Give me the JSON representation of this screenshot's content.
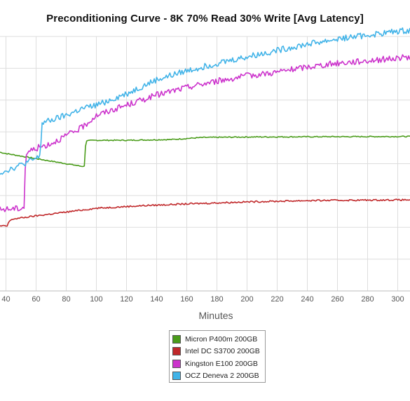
{
  "chart_data": {
    "type": "line",
    "title": "Preconditioning Curve - 8K 70% Read 30% Write [Avg Latency]",
    "xlabel": "Minutes",
    "ylabel": "",
    "x_ticks": [
      "40",
      "60",
      "80",
      "100",
      "120",
      "140",
      "160",
      "180",
      "200",
      "220",
      "240",
      "260",
      "280",
      "300"
    ],
    "xlim": [
      36,
      310
    ],
    "ylim": [
      0,
      10
    ],
    "grid": true,
    "legend_position": "bottom-center",
    "series": [
      {
        "name": "Micron P400m 200GB",
        "color": "#4a9c1a",
        "x": [
          36,
          40,
          50,
          60,
          70,
          80,
          90,
          92,
          93,
          100,
          120,
          150,
          170,
          200,
          250,
          310
        ],
        "y": [
          5.45,
          5.4,
          5.3,
          5.2,
          5.1,
          5.0,
          4.9,
          4.9,
          5.9,
          5.92,
          5.92,
          5.95,
          6.03,
          6.05,
          6.06,
          6.07
        ]
      },
      {
        "name": "Intel DC S3700 200GB",
        "color": "#c0282a",
        "x": [
          36,
          41,
          42,
          43,
          44,
          60,
          80,
          100,
          130,
          160,
          200,
          240,
          280,
          310
        ],
        "y": [
          2.55,
          2.55,
          2.75,
          2.75,
          2.82,
          2.95,
          3.1,
          3.25,
          3.35,
          3.42,
          3.5,
          3.55,
          3.57,
          3.58
        ]
      },
      {
        "name": "Kingston E100 200GB",
        "color": "#cc33cc",
        "x": [
          36,
          50,
          52,
          53,
          54,
          60,
          70,
          80,
          90,
          100,
          120,
          140,
          160,
          180,
          200,
          220,
          240,
          260,
          280,
          300,
          310
        ],
        "y": [
          3.2,
          3.25,
          3.3,
          5.2,
          5.45,
          5.6,
          5.8,
          6.1,
          6.4,
          6.9,
          7.3,
          7.7,
          8.0,
          8.25,
          8.45,
          8.6,
          8.8,
          8.95,
          9.05,
          9.15,
          9.2
        ]
      },
      {
        "name": "OCZ Deneva 2 200GB",
        "color": "#41b3e8",
        "x": [
          36,
          50,
          60,
          62,
          63,
          64,
          70,
          80,
          90,
          100,
          120,
          140,
          160,
          180,
          200,
          220,
          240,
          260,
          280,
          300,
          310
        ],
        "y": [
          4.65,
          4.95,
          5.2,
          5.25,
          5.6,
          6.6,
          6.7,
          6.9,
          7.15,
          7.3,
          7.75,
          8.3,
          8.65,
          8.95,
          9.2,
          9.45,
          9.7,
          9.9,
          10.05,
          10.2,
          10.25
        ]
      }
    ]
  }
}
